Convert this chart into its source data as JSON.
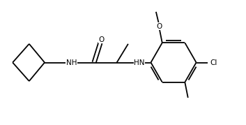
{
  "fig_width": 3.53,
  "fig_height": 1.79,
  "dpi": 100,
  "bg_color": "#ffffff",
  "bond_color": "#000000",
  "bond_lw": 1.3,
  "text_color": "#000000",
  "font_size": 7.5,
  "xlim": [
    0,
    11
  ],
  "ylim": [
    0,
    6
  ]
}
